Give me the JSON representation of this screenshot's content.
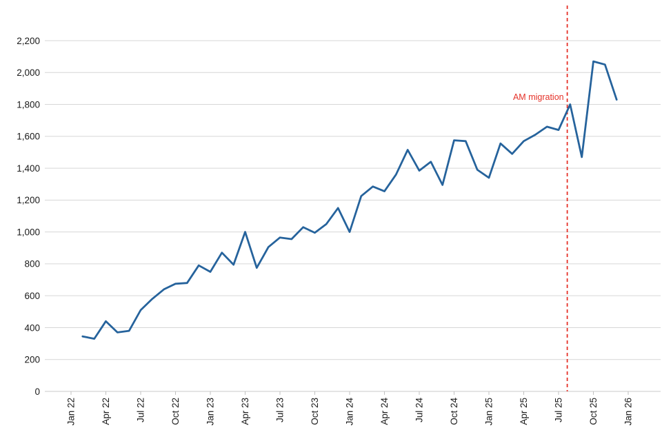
{
  "chart_data": {
    "type": "line",
    "title": "",
    "xlabel": "",
    "ylabel": "",
    "grid": true,
    "legend_position": "none",
    "ylim": [
      0,
      2200
    ],
    "y_tick_step": 200,
    "y_tick_labels": [
      "0",
      "200",
      "400",
      "600",
      "800",
      "1,000",
      "1,200",
      "1,400",
      "1,600",
      "1,800",
      "2,000",
      "2,200"
    ],
    "x_axis_months_total": 48,
    "x_tick_labels": [
      {
        "label": "Jan 22",
        "month_index": 0
      },
      {
        "label": "Apr 22",
        "month_index": 3
      },
      {
        "label": "Jul 22",
        "month_index": 6
      },
      {
        "label": "Oct 22",
        "month_index": 9
      },
      {
        "label": "Jan 23",
        "month_index": 12
      },
      {
        "label": "Apr 23",
        "month_index": 15
      },
      {
        "label": "Jul 23",
        "month_index": 18
      },
      {
        "label": "Oct 23",
        "month_index": 21
      },
      {
        "label": "Jan 24",
        "month_index": 24
      },
      {
        "label": "Apr 24",
        "month_index": 27
      },
      {
        "label": "Jul 24",
        "month_index": 30
      },
      {
        "label": "Oct 24",
        "month_index": 33
      },
      {
        "label": "Jan 25",
        "month_index": 36
      },
      {
        "label": "Apr 25",
        "month_index": 39
      },
      {
        "label": "Jul 25",
        "month_index": 42
      },
      {
        "label": "Oct 25",
        "month_index": 45
      },
      {
        "label": "Jan 26",
        "month_index": 48
      }
    ],
    "series": [
      {
        "name": "monthly-values",
        "start_month_index": 1,
        "categories": [
          "Feb 22",
          "Mar 22",
          "Apr 22",
          "May 22",
          "Jun 22",
          "Jul 22",
          "Aug 22",
          "Sep 22",
          "Oct 22",
          "Nov 22",
          "Dec 22",
          "Jan 23",
          "Feb 23",
          "Mar 23",
          "Apr 23",
          "May 23",
          "Jun 23",
          "Jul 23",
          "Aug 23",
          "Sep 23",
          "Oct 23",
          "Nov 23",
          "Dec 23",
          "Jan 24",
          "Feb 24",
          "Mar 24",
          "Apr 24",
          "May 24",
          "Jun 24",
          "Jul 24",
          "Aug 24",
          "Sep 24",
          "Oct 24",
          "Nov 24",
          "Dec 24",
          "Jan 25",
          "Feb 25",
          "Mar 25",
          "Apr 25",
          "May 25",
          "Jun 25",
          "Jul 25",
          "Aug 25",
          "Sep 25",
          "Oct 25",
          "Nov 25",
          "Dec 25"
        ],
        "values": [
          345,
          330,
          440,
          370,
          380,
          510,
          580,
          640,
          675,
          680,
          790,
          750,
          870,
          795,
          1000,
          775,
          905,
          965,
          955,
          1030,
          995,
          1050,
          1150,
          1000,
          1225,
          1285,
          1255,
          1360,
          1515,
          1385,
          1440,
          1295,
          1575,
          1570,
          1390,
          1340,
          1555,
          1490,
          1570,
          1610,
          1660,
          1640,
          1800,
          1470,
          2070,
          2050,
          1830
        ]
      }
    ],
    "annotations": [
      {
        "type": "vline",
        "label": "AM migration",
        "month_index": 42.75,
        "style": "dashed"
      }
    ],
    "colors": {
      "line": "#26639c",
      "annotation": "#e53128",
      "grid": "#d6d6d6",
      "baseline": "#c9c9c9",
      "tick": "#c0c0c0",
      "axis_text": "#1a1a1a"
    }
  }
}
